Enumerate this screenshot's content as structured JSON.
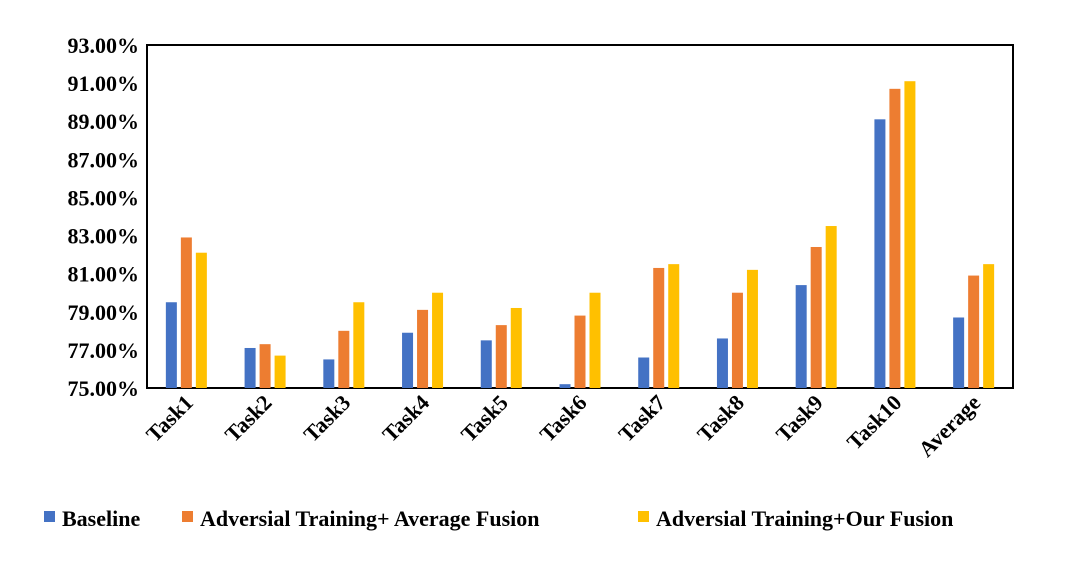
{
  "chart_data": {
    "type": "bar",
    "categories": [
      "Task1",
      "Task2",
      "Task3",
      "Task4",
      "Task5",
      "Task6",
      "Task7",
      "Task8",
      "Task9",
      "Task10",
      "Average"
    ],
    "series": [
      {
        "name": "Baseline",
        "color": "#4472C4",
        "values": [
          79.5,
          77.1,
          76.5,
          77.9,
          77.5,
          75.2,
          76.6,
          77.6,
          80.4,
          89.1,
          78.7
        ]
      },
      {
        "name": "Adversial Training+ Average Fusion",
        "color": "#ED7D31",
        "values": [
          82.9,
          77.3,
          78.0,
          79.1,
          78.3,
          78.8,
          81.3,
          80.0,
          82.4,
          90.7,
          80.9
        ]
      },
      {
        "name": "Adversial Training+Our Fusion",
        "color": "#FFC000",
        "values": [
          82.1,
          76.7,
          79.5,
          80.0,
          79.2,
          80.0,
          81.5,
          81.2,
          83.5,
          91.1,
          81.5
        ]
      }
    ],
    "ylim": [
      75,
      93
    ],
    "yticks": [
      "75.00%",
      "77.00%",
      "79.00%",
      "81.00%",
      "83.00%",
      "85.00%",
      "87.00%",
      "89.00%",
      "91.00%",
      "93.00%"
    ],
    "ytick_values": [
      75,
      77,
      79,
      81,
      83,
      85,
      87,
      89,
      91,
      93
    ],
    "legend_position": "bottom",
    "grid": false
  }
}
